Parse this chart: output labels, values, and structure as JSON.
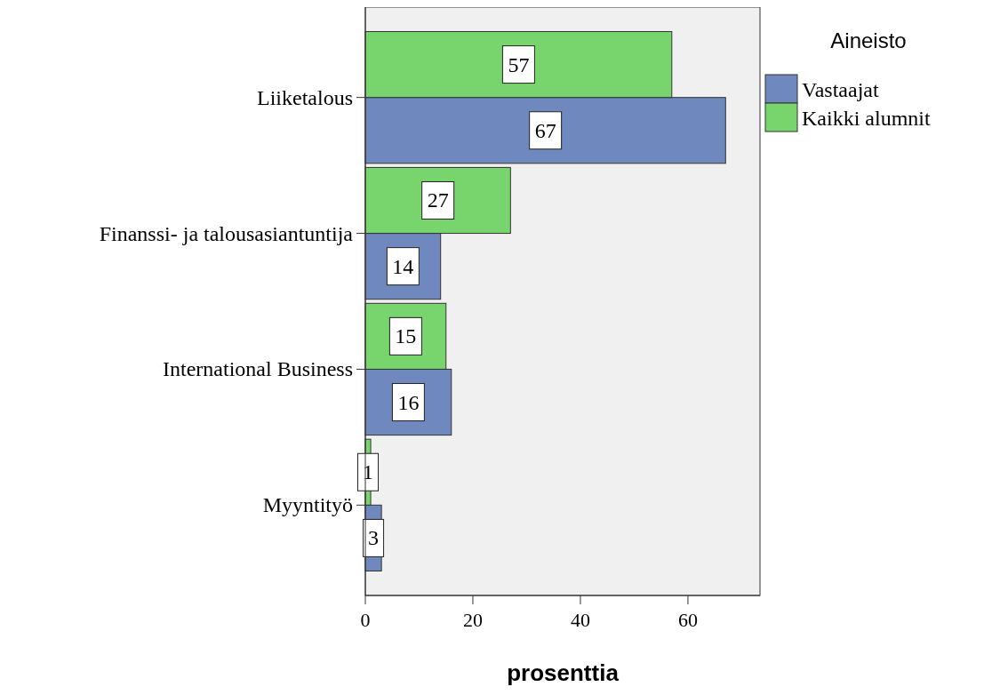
{
  "chart_data": {
    "type": "bar",
    "orientation": "horizontal",
    "categories": [
      "Liiketalous",
      "Finanssi- ja talousasiantuntija",
      "International Business",
      "Myyntityö"
    ],
    "series": [
      {
        "name": "Vastaajat",
        "color": "#6f88bd",
        "values": [
          67,
          14,
          16,
          3
        ]
      },
      {
        "name": "Kaikki alumnit",
        "color": "#78d46c",
        "values": [
          57,
          27,
          15,
          1
        ]
      }
    ],
    "xlim": [
      0,
      73.4
    ],
    "xticks": [
      0,
      20,
      40,
      60
    ],
    "xlabel": "prosenttia",
    "legend_title": "Aineisto",
    "legend": "right",
    "grid": false,
    "data_labels": true
  }
}
